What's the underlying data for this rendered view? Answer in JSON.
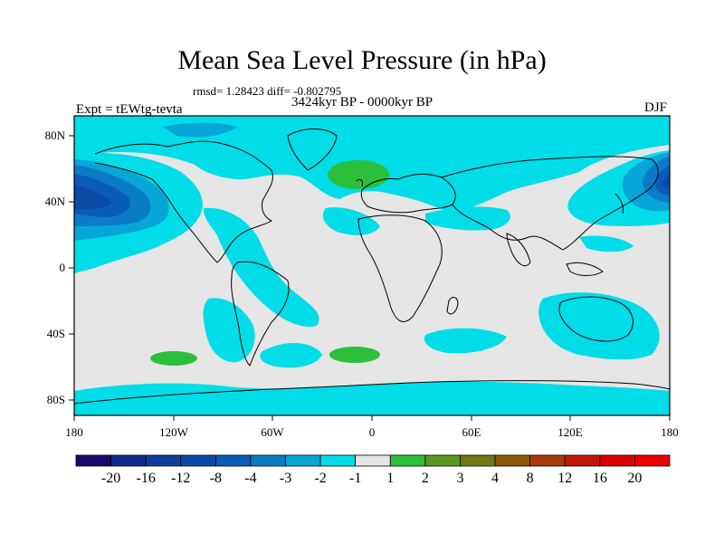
{
  "title": "Mean Sea Level Pressure (in hPa)",
  "stats": "rmsd= 1.28423 diff= -0.802795",
  "experiment": "Expt = tEWtg-tevta",
  "period": "3424kyr BP - 0000kyr BP",
  "season": "DJF",
  "map": {
    "lat_labels": [
      "80N",
      "40N",
      "0",
      "40S",
      "80S"
    ],
    "lon_labels": [
      "180",
      "120W",
      "60W",
      "0",
      "60E",
      "120E",
      "180"
    ],
    "lat_range": [
      -90,
      90
    ],
    "lon_range": [
      -180,
      180
    ],
    "background_color": "#e6e6e6",
    "coast_color": "#000000"
  },
  "colorbar": {
    "labels": [
      "-20",
      "-16",
      "-12",
      "-8",
      "-4",
      "-3",
      "-2",
      "-1",
      "1",
      "2",
      "3",
      "4",
      "8",
      "12",
      "16",
      "20"
    ],
    "colors": [
      "#1a0a6e",
      "#102a8e",
      "#103c9e",
      "#0a4ba8",
      "#0a5cb8",
      "#0a7cc6",
      "#08a6d6",
      "#00dde8",
      "#e6e6e6",
      "#2cbf3c",
      "#5a9a22",
      "#6f7a12",
      "#8e5a0a",
      "#aa3a0a",
      "#c21808",
      "#dc0000",
      "#ee0000"
    ]
  },
  "anomaly_regions": [
    {
      "name": "north-pacific-low",
      "color": "#0a4ba8"
    },
    {
      "name": "iceland-high",
      "color": "#2cbf3c"
    },
    {
      "name": "south-atlantic-high",
      "color": "#2cbf3c"
    },
    {
      "name": "south-pacific-high",
      "color": "#2cbf3c"
    }
  ]
}
